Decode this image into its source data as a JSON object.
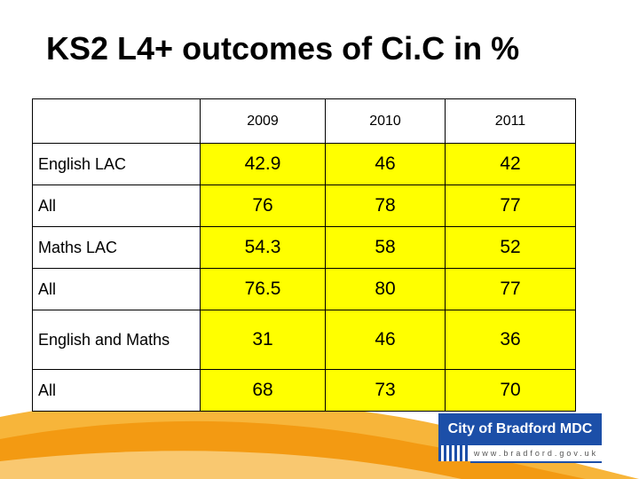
{
  "title": "KS2 L4+ outcomes of Ci.C in %",
  "table": {
    "years": [
      "2009",
      "2010",
      "2011"
    ],
    "rows": [
      {
        "label": "English LAC",
        "values": [
          "42.9",
          "46",
          "42"
        ]
      },
      {
        "label": "All",
        "values": [
          "76",
          "78",
          "77"
        ]
      },
      {
        "label": "Maths LAC",
        "values": [
          "54.3",
          "58",
          "52"
        ]
      },
      {
        "label": "All",
        "values": [
          "76.5",
          "80",
          "77"
        ]
      },
      {
        "label": "English and Maths",
        "values": [
          "31",
          "46",
          "36"
        ]
      },
      {
        "label": "All",
        "values": [
          "68",
          "73",
          "70"
        ]
      }
    ]
  },
  "logo": {
    "name": "City of Bradford MDC",
    "url": "www.bradford.gov.uk"
  },
  "colors": {
    "highlight": "#ffff00",
    "swoosh": "#f5a21c",
    "logo_blue": "#1c4fa8"
  }
}
